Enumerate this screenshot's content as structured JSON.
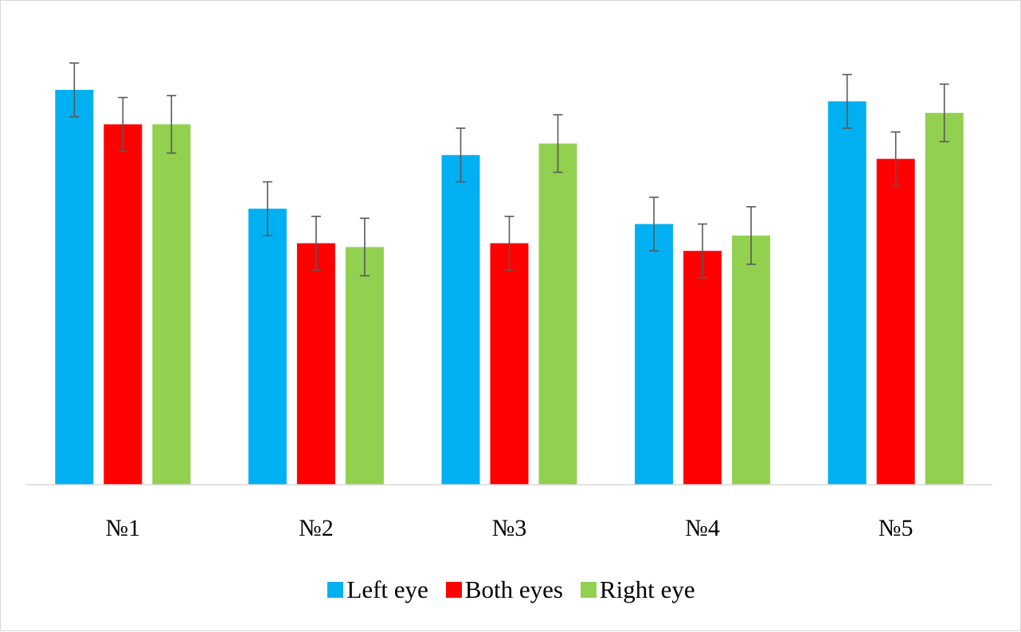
{
  "chart_data": {
    "type": "bar",
    "categories": [
      "№1",
      "№2",
      "№3",
      "№4",
      "№5"
    ],
    "series": [
      {
        "name": "Left eye",
        "color": "#00b0f0",
        "values": [
          103,
          72,
          86,
          68,
          100
        ],
        "errors": [
          7,
          7,
          7,
          7,
          7
        ]
      },
      {
        "name": "Both eyes",
        "color": "#ff0000",
        "values": [
          94,
          63,
          63,
          61,
          85
        ],
        "errors": [
          7,
          7,
          7,
          7,
          7
        ]
      },
      {
        "name": "Right eye",
        "color": "#92d050",
        "values": [
          94,
          62,
          89,
          65,
          97
        ],
        "errors": [
          7.5,
          7.5,
          7.5,
          7.5,
          7.5
        ]
      }
    ],
    "ylim": [
      0,
      120
    ],
    "grid": false,
    "legend_position": "bottom",
    "error_bar_color": "#595959",
    "axis_color": "#d9d9d9"
  }
}
